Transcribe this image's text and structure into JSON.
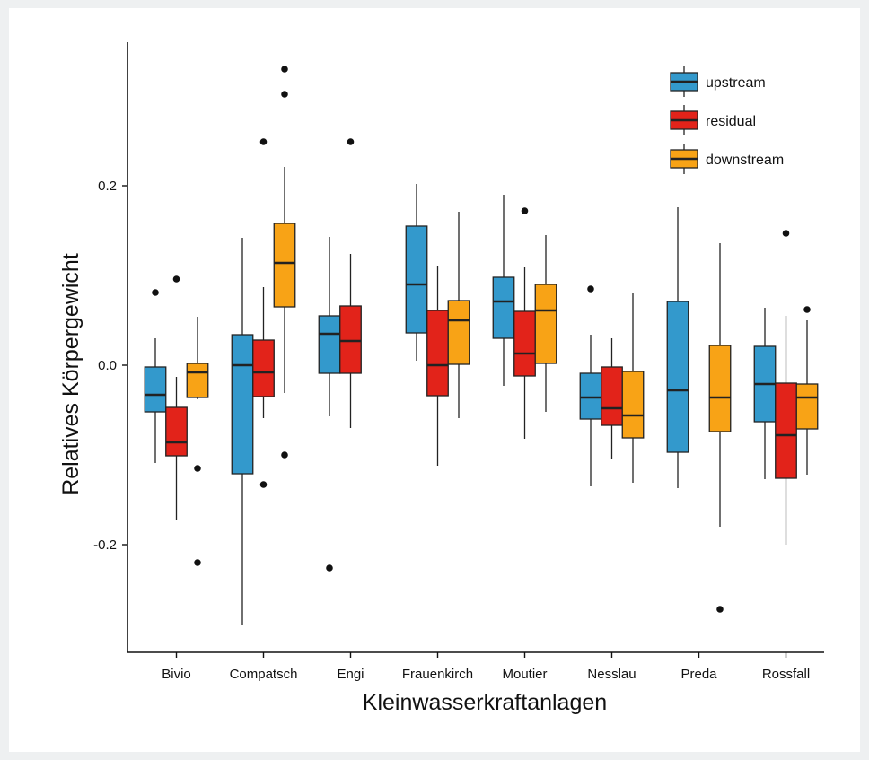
{
  "chart_data": {
    "type": "boxplot",
    "xlabel": "Kleinwasserkraftanlagen",
    "ylabel": "Relatives Körpergewicht",
    "y_ticks": [
      {
        "value": 0.2,
        "label": "0.2"
      },
      {
        "value": 0.0,
        "label": "0.0"
      },
      {
        "value": -0.2,
        "label": "-0.2"
      }
    ],
    "ylim": [
      -0.32,
      0.36
    ],
    "grid": false,
    "legend_position": "top-right",
    "categories": [
      "Bivio",
      "Compatsch",
      "Engi",
      "Frauenkirch",
      "Moutier",
      "Nesslau",
      "Preda",
      "Rossfall"
    ],
    "series": [
      {
        "name": "upstream",
        "color": "#3399cc",
        "boxes": [
          {
            "category": "Bivio",
            "whisker_low": -0.109,
            "q1": -0.052,
            "median": -0.033,
            "q3": -0.002,
            "whisker_high": 0.03,
            "outliers": [
              0.081
            ]
          },
          {
            "category": "Compatsch",
            "whisker_low": -0.29,
            "q1": -0.121,
            "median": 0.0,
            "q3": 0.034,
            "whisker_high": 0.142,
            "outliers": []
          },
          {
            "category": "Engi",
            "whisker_low": -0.057,
            "q1": -0.009,
            "median": 0.035,
            "q3": 0.055,
            "whisker_high": 0.143,
            "outliers": [
              -0.226
            ]
          },
          {
            "category": "Frauenkirch",
            "whisker_low": 0.005,
            "q1": 0.036,
            "median": 0.09,
            "q3": 0.155,
            "whisker_high": 0.202,
            "outliers": []
          },
          {
            "category": "Moutier",
            "whisker_low": -0.023,
            "q1": 0.03,
            "median": 0.071,
            "q3": 0.098,
            "whisker_high": 0.19,
            "outliers": []
          },
          {
            "category": "Nesslau",
            "whisker_low": -0.135,
            "q1": -0.06,
            "median": -0.036,
            "q3": -0.009,
            "whisker_high": 0.034,
            "outliers": [
              0.085
            ]
          },
          {
            "category": "Preda",
            "whisker_low": -0.137,
            "q1": -0.097,
            "median": -0.028,
            "q3": 0.071,
            "whisker_high": 0.176,
            "outliers": []
          },
          {
            "category": "Rossfall",
            "whisker_low": -0.127,
            "q1": -0.063,
            "median": -0.021,
            "q3": 0.021,
            "whisker_high": 0.064,
            "outliers": []
          }
        ]
      },
      {
        "name": "residual",
        "color": "#e2231a",
        "boxes": [
          {
            "category": "Bivio",
            "whisker_low": -0.173,
            "q1": -0.101,
            "median": -0.086,
            "q3": -0.047,
            "whisker_high": -0.013,
            "outliers": [
              0.096
            ]
          },
          {
            "category": "Compatsch",
            "whisker_low": -0.059,
            "q1": -0.035,
            "median": -0.008,
            "q3": 0.028,
            "whisker_high": 0.087,
            "outliers": [
              0.249,
              -0.133
            ]
          },
          {
            "category": "Engi",
            "whisker_low": -0.07,
            "q1": -0.009,
            "median": 0.027,
            "q3": 0.066,
            "whisker_high": 0.124,
            "outliers": [
              0.249
            ]
          },
          {
            "category": "Frauenkirch",
            "whisker_low": -0.112,
            "q1": -0.034,
            "median": 0.0,
            "q3": 0.061,
            "whisker_high": 0.11,
            "outliers": []
          },
          {
            "category": "Moutier",
            "whisker_low": -0.082,
            "q1": -0.012,
            "median": 0.013,
            "q3": 0.06,
            "whisker_high": 0.109,
            "outliers": [
              0.172
            ]
          },
          {
            "category": "Nesslau",
            "whisker_low": -0.104,
            "q1": -0.067,
            "median": -0.048,
            "q3": -0.002,
            "whisker_high": 0.03,
            "outliers": []
          },
          {
            "category": "Rossfall",
            "whisker_low": -0.2,
            "q1": -0.126,
            "median": -0.078,
            "q3": -0.02,
            "whisker_high": 0.055,
            "outliers": [
              0.147
            ]
          }
        ]
      },
      {
        "name": "downstream",
        "color": "#f8a316",
        "boxes": [
          {
            "category": "Bivio",
            "whisker_low": -0.038,
            "q1": -0.036,
            "median": -0.008,
            "q3": 0.002,
            "whisker_high": 0.054,
            "outliers": [
              -0.115,
              -0.22
            ]
          },
          {
            "category": "Compatsch",
            "whisker_low": -0.031,
            "q1": 0.065,
            "median": 0.114,
            "q3": 0.158,
            "whisker_high": 0.221,
            "outliers": [
              0.33,
              0.302,
              -0.1
            ]
          },
          {
            "category": "Frauenkirch",
            "whisker_low": -0.059,
            "q1": 0.001,
            "median": 0.05,
            "q3": 0.072,
            "whisker_high": 0.171,
            "outliers": []
          },
          {
            "category": "Moutier",
            "whisker_low": -0.052,
            "q1": 0.002,
            "median": 0.061,
            "q3": 0.09,
            "whisker_high": 0.145,
            "outliers": []
          },
          {
            "category": "Nesslau",
            "whisker_low": -0.131,
            "q1": -0.081,
            "median": -0.056,
            "q3": -0.007,
            "whisker_high": 0.081,
            "outliers": []
          },
          {
            "category": "Preda",
            "whisker_low": -0.18,
            "q1": -0.074,
            "median": -0.036,
            "q3": 0.022,
            "whisker_high": 0.136,
            "outliers": [
              -0.272
            ]
          },
          {
            "category": "Rossfall",
            "whisker_low": -0.122,
            "q1": -0.071,
            "median": -0.036,
            "q3": -0.021,
            "whisker_high": 0.05,
            "outliers": [
              0.062
            ]
          }
        ]
      }
    ]
  }
}
